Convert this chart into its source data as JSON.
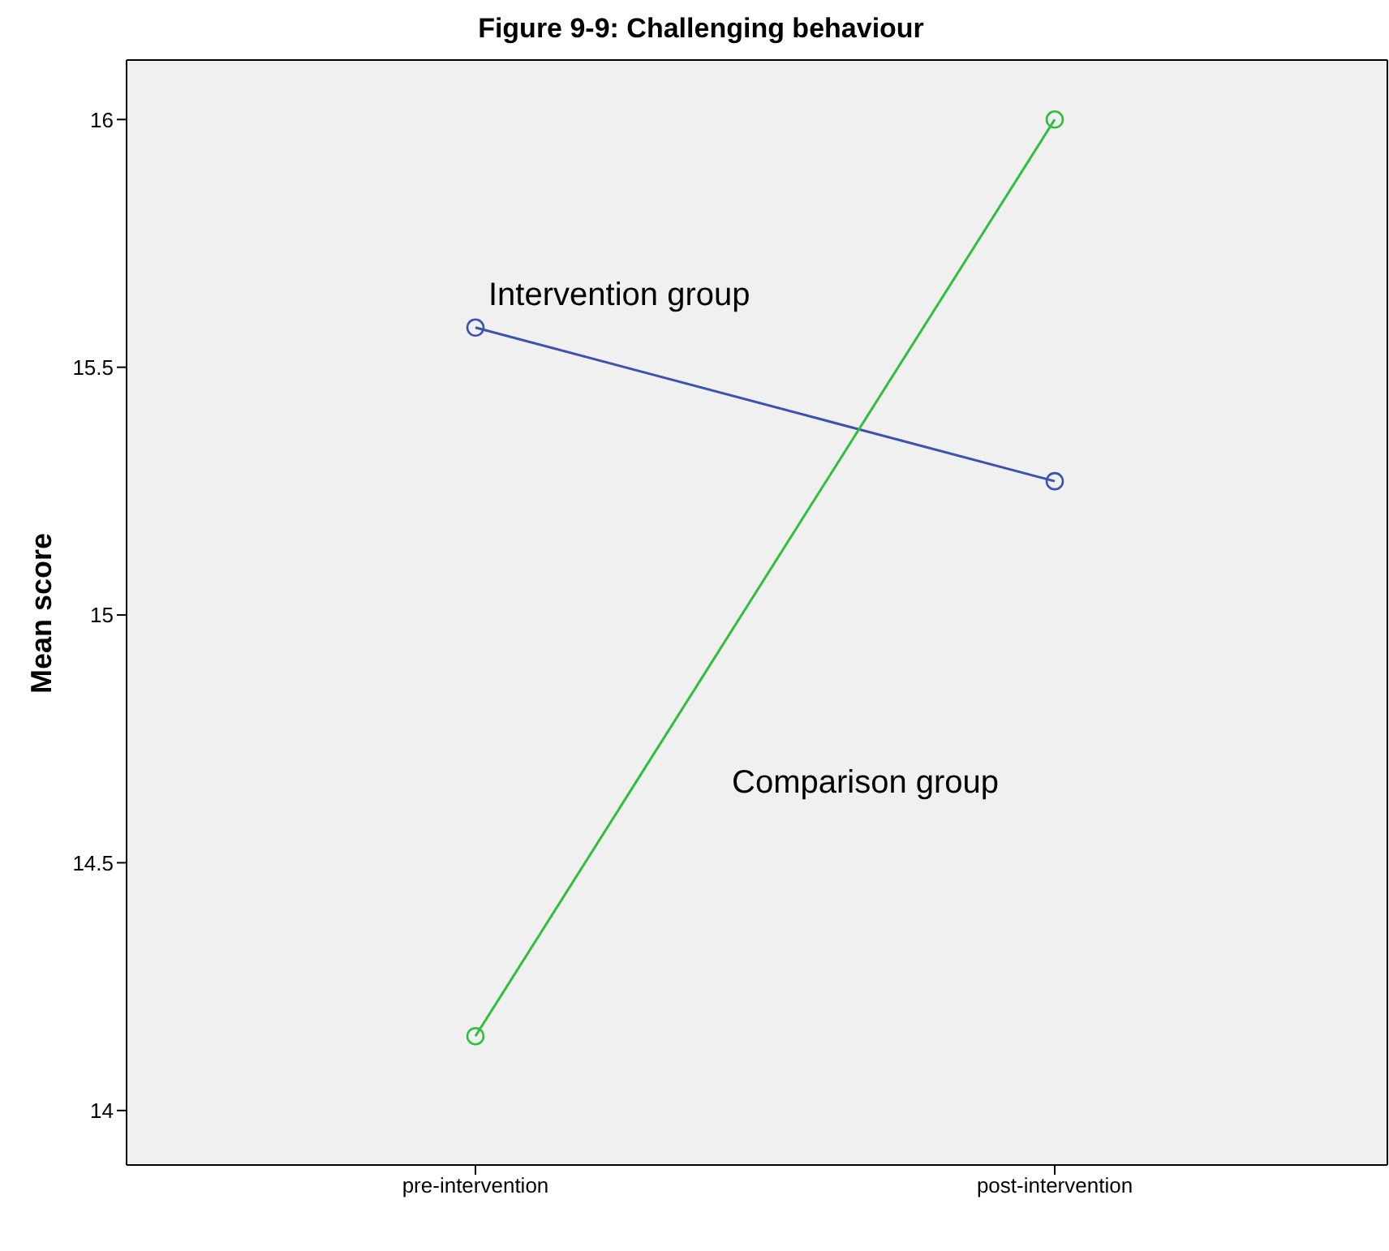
{
  "chart_data": {
    "type": "line",
    "title": "Figure 9-9: Challenging behaviour",
    "ylabel": "Mean score",
    "categories": [
      "pre-intervention",
      "post-intervention"
    ],
    "series": [
      {
        "name": "Intervention group",
        "color": "#3a53b0",
        "values": [
          15.58,
          15.27
        ]
      },
      {
        "name": "Comparison group",
        "color": "#2fbf3a",
        "values": [
          14.15,
          16.0
        ]
      }
    ],
    "ylim": [
      13.89,
      16.12
    ],
    "yticks": [
      14,
      14.5,
      15,
      15.5,
      16
    ],
    "marker": "circle",
    "line_style": "solid",
    "legend": false
  }
}
